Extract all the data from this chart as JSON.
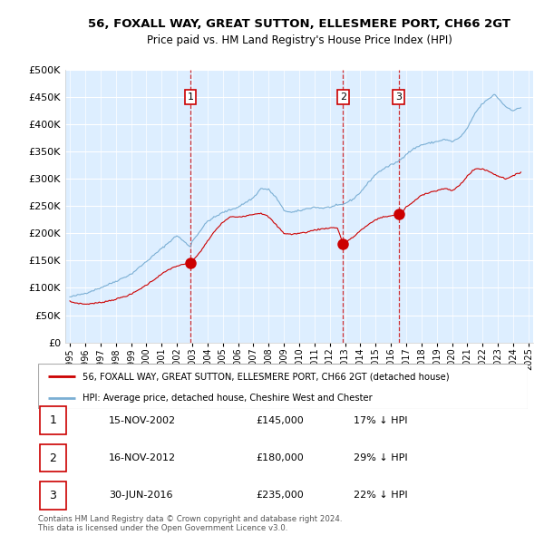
{
  "title": "56, FOXALL WAY, GREAT SUTTON, ELLESMERE PORT, CH66 2GT",
  "subtitle": "Price paid vs. HM Land Registry's House Price Index (HPI)",
  "hpi_label": "HPI: Average price, detached house, Cheshire West and Chester",
  "property_label": "56, FOXALL WAY, GREAT SUTTON, ELLESMERE PORT, CH66 2GT (detached house)",
  "hpi_color": "#7bafd4",
  "property_color": "#cc0000",
  "vline_color": "#cc0000",
  "plot_bg": "#ddeeff",
  "ylim": [
    0,
    500000
  ],
  "yticks": [
    0,
    50000,
    100000,
    150000,
    200000,
    250000,
    300000,
    350000,
    400000,
    450000,
    500000
  ],
  "xlim_start": 1994.7,
  "xlim_end": 2025.3,
  "sale_dates": [
    2002.875,
    2012.875,
    2016.5
  ],
  "sale_prices": [
    145000,
    180000,
    235000
  ],
  "sale_labels": [
    "1",
    "2",
    "3"
  ],
  "table_data": [
    [
      "1",
      "15-NOV-2002",
      "£145,000",
      "17% ↓ HPI"
    ],
    [
      "2",
      "16-NOV-2012",
      "£180,000",
      "29% ↓ HPI"
    ],
    [
      "3",
      "30-JUN-2016",
      "£235,000",
      "22% ↓ HPI"
    ]
  ],
  "footer_text": "Contains HM Land Registry data © Crown copyright and database right 2024.\nThis data is licensed under the Open Government Licence v3.0."
}
